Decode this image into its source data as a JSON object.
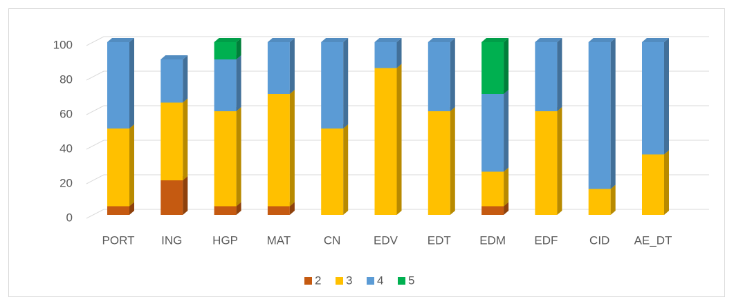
{
  "chart_data": {
    "type": "bar3d_stacked",
    "categories": [
      "PORT",
      "ING",
      "HGP",
      "MAT",
      "CN",
      "EDV",
      "EDT",
      "EDM",
      "EDF",
      "CID",
      "AE_DT"
    ],
    "series": [
      {
        "name": "2",
        "color": "#c55a11",
        "values": [
          5,
          20,
          5,
          5,
          0,
          0,
          0,
          5,
          0,
          0,
          0
        ]
      },
      {
        "name": "3",
        "color": "#ffc000",
        "values": [
          45,
          45,
          55,
          65,
          50,
          85,
          60,
          20,
          60,
          15,
          35
        ]
      },
      {
        "name": "4",
        "color": "#5b9bd5",
        "values": [
          50,
          25,
          30,
          30,
          50,
          15,
          40,
          45,
          40,
          85,
          65
        ]
      },
      {
        "name": "5",
        "color": "#00b050",
        "values": [
          0,
          0,
          10,
          0,
          0,
          0,
          0,
          30,
          0,
          0,
          0
        ]
      }
    ],
    "ylim": [
      0,
      100
    ],
    "yticks": [
      0,
      20,
      40,
      60,
      80,
      100
    ],
    "grid": true,
    "legend": "bottom"
  }
}
